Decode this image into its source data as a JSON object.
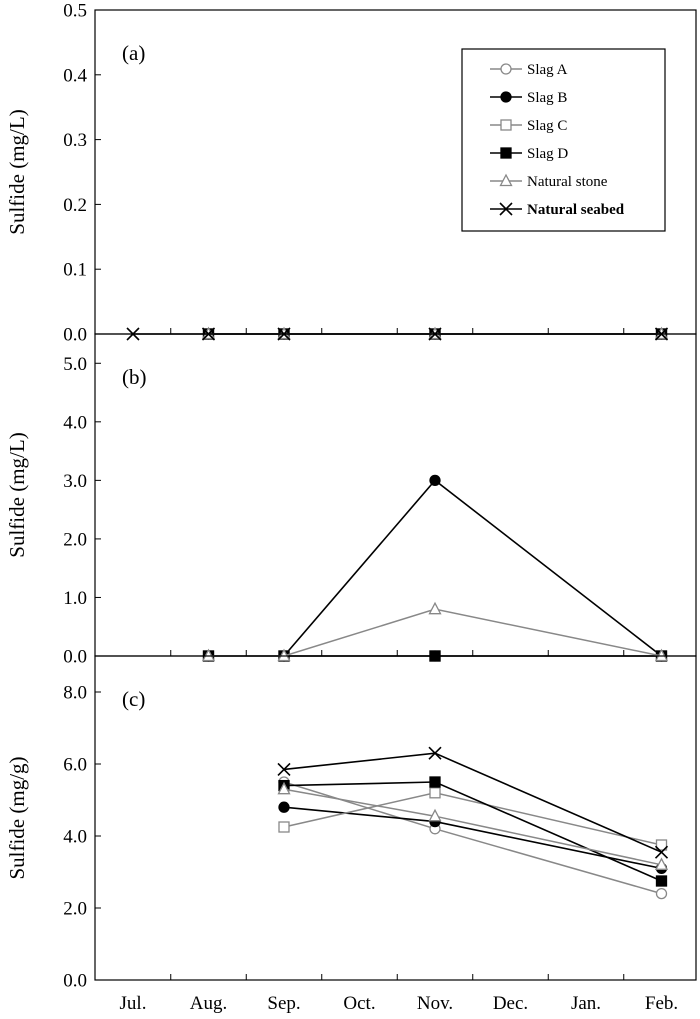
{
  "chart_data": {
    "type": "line",
    "x_categories": [
      "Jul.",
      "Aug.",
      "Sep.",
      "Oct.",
      "Nov.",
      "Dec.",
      "Jan.",
      "Feb."
    ],
    "legend": {
      "placement": "top-right of panel (a)",
      "entries": [
        {
          "name": "Slag A",
          "marker": "circle-open",
          "color": "#888888",
          "bold": false
        },
        {
          "name": "Slag B",
          "marker": "circle-filled",
          "color": "#000000",
          "bold": false
        },
        {
          "name": "Slag C",
          "marker": "square-open",
          "color": "#888888",
          "bold": false
        },
        {
          "name": "Slag D",
          "marker": "square-filled",
          "color": "#000000",
          "bold": false
        },
        {
          "name": "Natural stone",
          "marker": "triangle-open",
          "color": "#888888",
          "bold": false
        },
        {
          "name": "Natural seabed",
          "marker": "x",
          "color": "#000000",
          "bold": true
        }
      ]
    },
    "panels": [
      {
        "label": "(a)",
        "ylabel": "Sulfide (mg/L)",
        "ylim": [
          0,
          0.5
        ],
        "yticks": [
          0,
          0.1,
          0.2,
          0.3,
          0.4,
          0.5
        ],
        "ytick_labels": [
          "0.0",
          "0.1",
          "0.2",
          "0.3",
          "0.4",
          "0.5"
        ],
        "series": [
          {
            "name": "Slag A",
            "x": [
              "Aug.",
              "Sep.",
              "Nov.",
              "Feb."
            ],
            "values": [
              0,
              0,
              0,
              0
            ]
          },
          {
            "name": "Slag B",
            "x": [
              "Aug.",
              "Sep.",
              "Nov.",
              "Feb."
            ],
            "values": [
              0,
              0,
              0,
              0
            ]
          },
          {
            "name": "Slag C",
            "x": [
              "Aug.",
              "Sep.",
              "Nov.",
              "Feb."
            ],
            "values": [
              0,
              0,
              0,
              0
            ]
          },
          {
            "name": "Slag D",
            "x": [
              "Aug.",
              "Sep.",
              "Nov.",
              "Feb."
            ],
            "values": [
              0,
              0,
              0,
              0
            ]
          },
          {
            "name": "Natural stone",
            "x": [
              "Aug.",
              "Sep.",
              "Nov.",
              "Feb."
            ],
            "values": [
              0,
              0,
              0,
              0
            ]
          },
          {
            "name": "Natural seabed",
            "x": [
              "Jul.",
              "Aug.",
              "Sep.",
              "Nov.",
              "Feb."
            ],
            "values": [
              0,
              0,
              0,
              0,
              0
            ]
          }
        ]
      },
      {
        "label": "(b)",
        "ylabel": "Sulfide (mg/L)",
        "ylim": [
          0,
          5.5
        ],
        "yticks": [
          0,
          1,
          2,
          3,
          4,
          5
        ],
        "ytick_labels": [
          "0.0",
          "1.0",
          "2.0",
          "3.0",
          "4.0",
          "5.0"
        ],
        "series": [
          {
            "name": "Slag A",
            "x": [
              "Aug.",
              "Sep.",
              "Nov.",
              "Feb."
            ],
            "values": [
              0,
              0,
              0,
              0
            ]
          },
          {
            "name": "Slag B",
            "x": [
              "Aug.",
              "Sep.",
              "Nov.",
              "Feb."
            ],
            "values": [
              0,
              0,
              3.0,
              0
            ]
          },
          {
            "name": "Slag C",
            "x": [
              "Aug.",
              "Sep.",
              "Nov.",
              "Feb."
            ],
            "values": [
              0,
              0,
              0,
              0
            ]
          },
          {
            "name": "Slag D",
            "x": [
              "Aug.",
              "Sep.",
              "Nov.",
              "Feb."
            ],
            "values": [
              0,
              0,
              0,
              0
            ]
          },
          {
            "name": "Natural stone",
            "x": [
              "Aug.",
              "Sep.",
              "Nov.",
              "Feb."
            ],
            "values": [
              0,
              0,
              0.8,
              0
            ]
          }
        ]
      },
      {
        "label": "(c)",
        "ylabel": "Sulfide (mg/g)",
        "ylim": [
          0,
          9
        ],
        "yticks": [
          0,
          2,
          4,
          6,
          8
        ],
        "ytick_labels": [
          "0.0",
          "2.0",
          "4.0",
          "6.0",
          "8.0"
        ],
        "series": [
          {
            "name": "Slag A",
            "x": [
              "Sep.",
              "Nov.",
              "Feb."
            ],
            "values": [
              5.5,
              4.2,
              2.4
            ]
          },
          {
            "name": "Slag B",
            "x": [
              "Sep.",
              "Nov.",
              "Feb."
            ],
            "values": [
              4.8,
              4.4,
              3.1
            ]
          },
          {
            "name": "Slag C",
            "x": [
              "Sep.",
              "Nov.",
              "Feb."
            ],
            "values": [
              4.25,
              5.2,
              3.75
            ]
          },
          {
            "name": "Slag D",
            "x": [
              "Sep.",
              "Nov.",
              "Feb."
            ],
            "values": [
              5.4,
              5.5,
              2.75
            ]
          },
          {
            "name": "Natural stone",
            "x": [
              "Sep.",
              "Nov.",
              "Feb."
            ],
            "values": [
              5.3,
              4.55,
              3.2
            ]
          },
          {
            "name": "Natural seabed",
            "x": [
              "Sep.",
              "Nov.",
              "Feb."
            ],
            "values": [
              5.85,
              6.3,
              3.55
            ]
          }
        ]
      }
    ]
  }
}
